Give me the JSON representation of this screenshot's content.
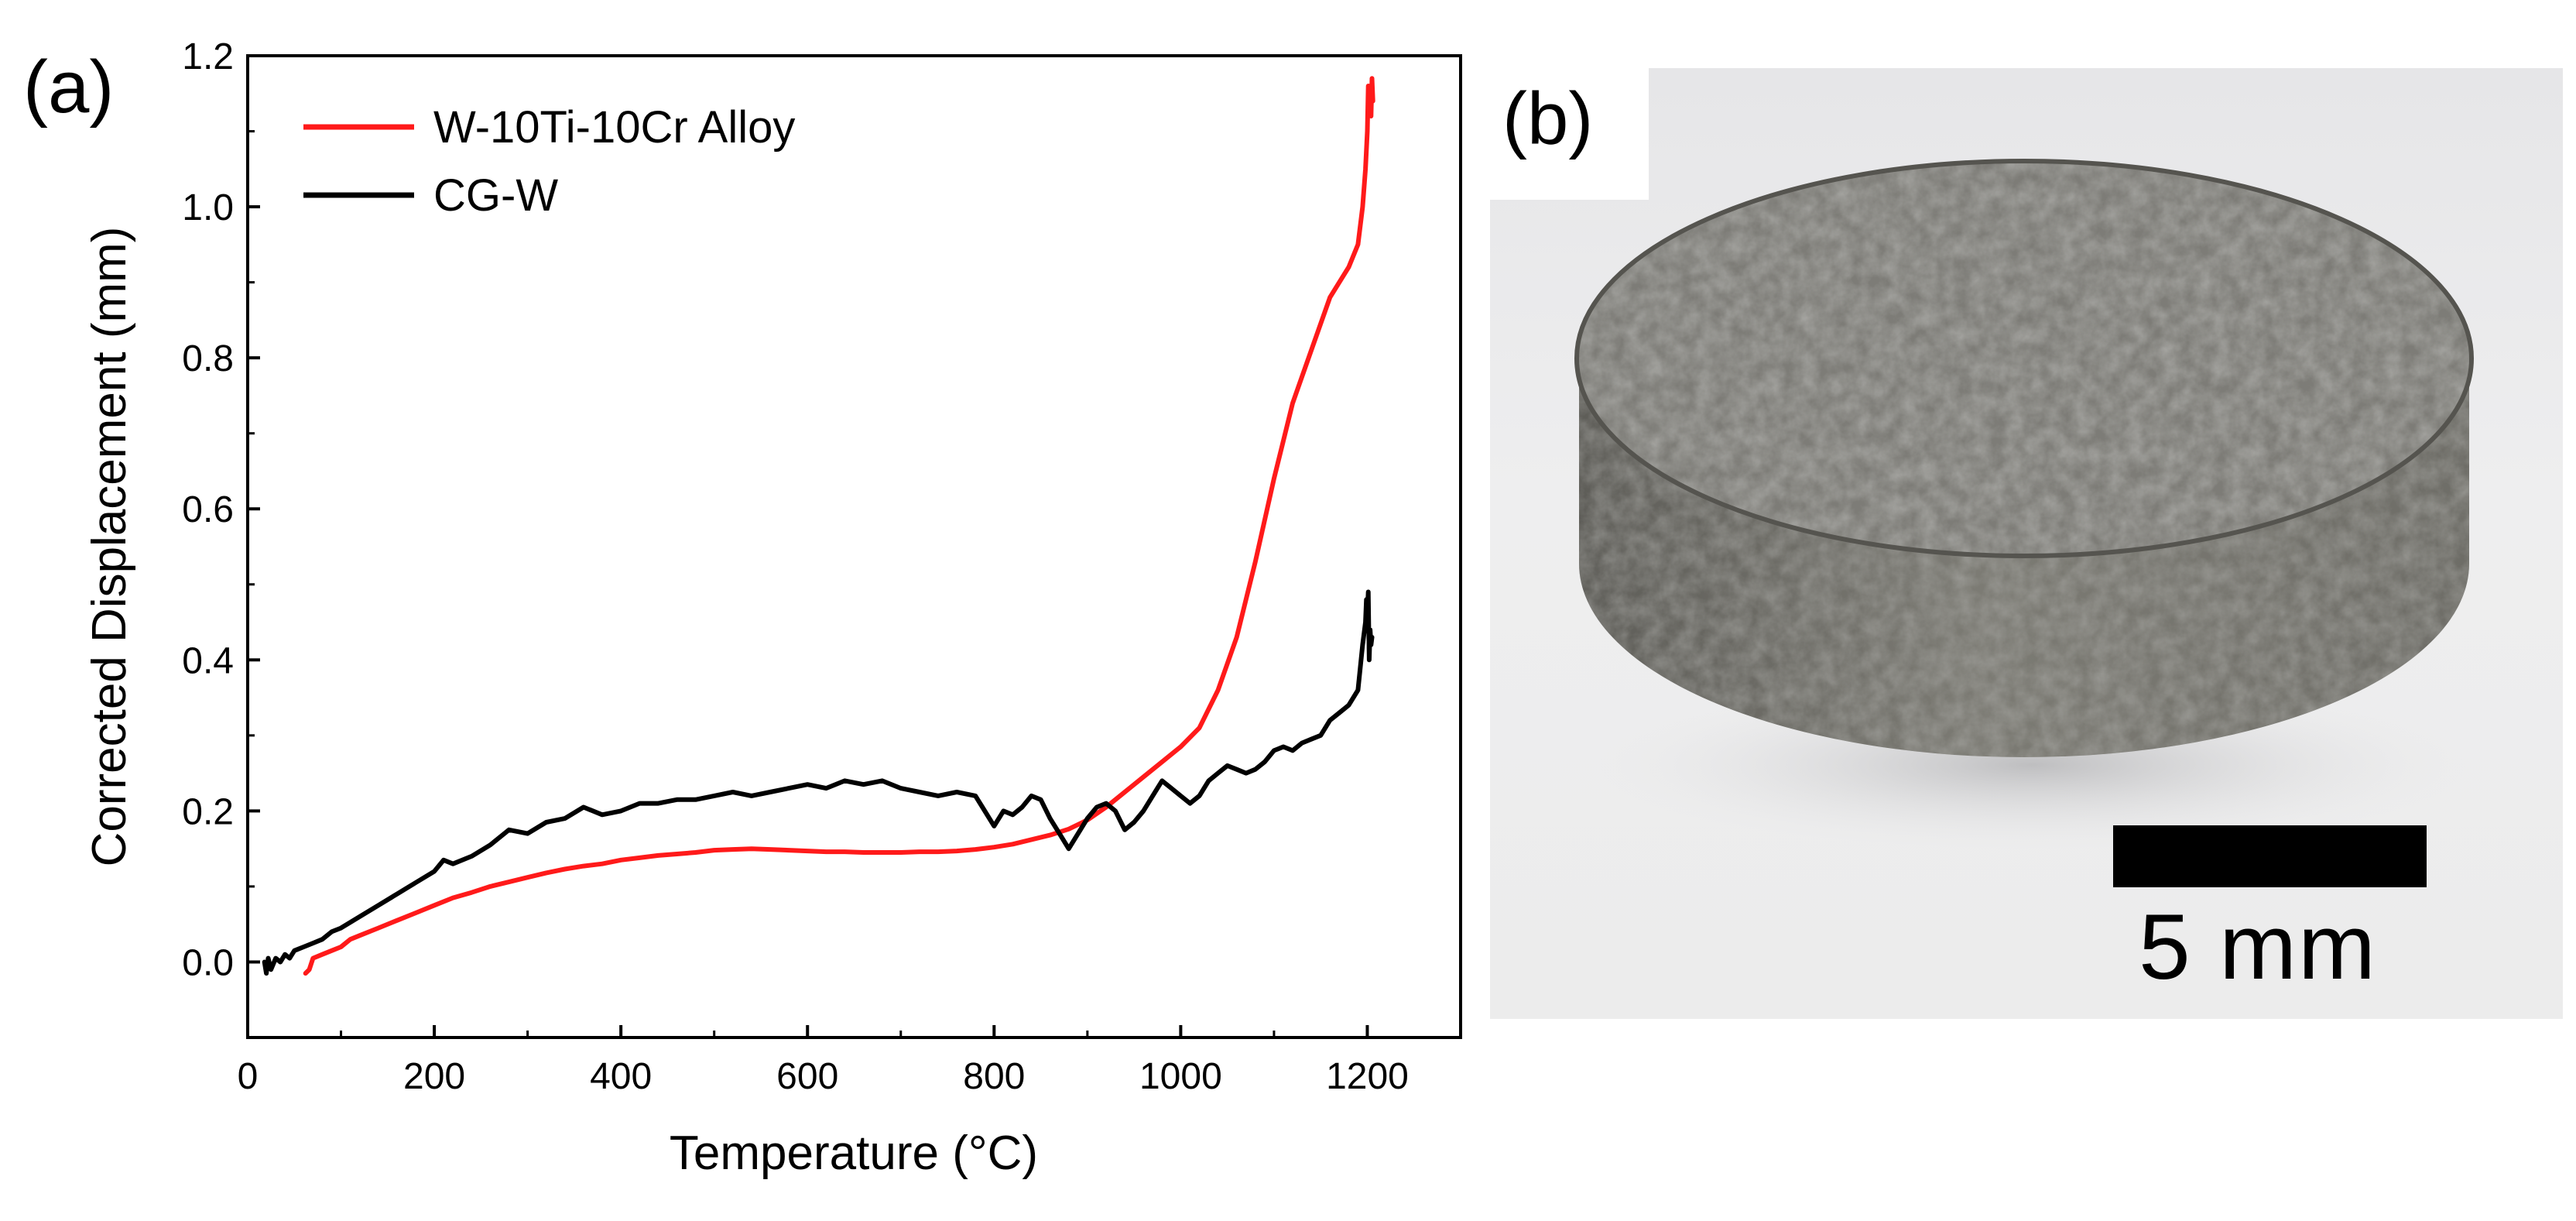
{
  "panel_a_label": "(a)",
  "panel_b_label": "(b)",
  "scale_bar_label": "5 mm",
  "colors": {
    "alloy": "#ff1a1a",
    "cgw": "#000000"
  },
  "chart_data": {
    "type": "line",
    "title": "",
    "xlabel": "Temperature (°C)",
    "ylabel": "Corrected Displacement (mm)",
    "xlim": [
      0,
      1300
    ],
    "ylim": [
      -0.1,
      1.2
    ],
    "xticks": [
      0,
      200,
      400,
      600,
      800,
      1000,
      1200
    ],
    "yticks": [
      0.0,
      0.2,
      0.4,
      0.6,
      0.8,
      1.0,
      1.2
    ],
    "xtick_labels": [
      "0",
      "200",
      "400",
      "600",
      "800",
      "1000",
      "1200"
    ],
    "ytick_labels": [
      "0.0",
      "0.2",
      "0.4",
      "0.6",
      "0.8",
      "1.0",
      "1.2"
    ],
    "legend_position": "top-left",
    "series": [
      {
        "name": "W-10Ti-10Cr Alloy",
        "color": "#ff1a1a",
        "x": [
          62,
          66,
          70,
          80,
          90,
          100,
          110,
          120,
          140,
          160,
          180,
          200,
          220,
          240,
          260,
          280,
          300,
          320,
          340,
          360,
          380,
          400,
          420,
          440,
          460,
          480,
          500,
          520,
          540,
          560,
          580,
          600,
          620,
          640,
          660,
          680,
          700,
          720,
          740,
          760,
          780,
          800,
          820,
          840,
          860,
          880,
          900,
          920,
          940,
          960,
          980,
          1000,
          1020,
          1040,
          1060,
          1080,
          1100,
          1120,
          1140,
          1160,
          1170,
          1180,
          1190,
          1195,
          1198,
          1200,
          1201,
          1202,
          1203,
          1204,
          1205,
          1206
        ],
        "y": [
          -0.015,
          -0.01,
          0.005,
          0.01,
          0.015,
          0.02,
          0.03,
          0.035,
          0.045,
          0.055,
          0.065,
          0.075,
          0.085,
          0.092,
          0.1,
          0.106,
          0.112,
          0.118,
          0.123,
          0.127,
          0.13,
          0.135,
          0.138,
          0.141,
          0.143,
          0.145,
          0.148,
          0.149,
          0.15,
          0.149,
          0.148,
          0.147,
          0.146,
          0.146,
          0.145,
          0.145,
          0.145,
          0.146,
          0.146,
          0.147,
          0.149,
          0.152,
          0.156,
          0.162,
          0.168,
          0.176,
          0.188,
          0.205,
          0.225,
          0.245,
          0.265,
          0.285,
          0.31,
          0.36,
          0.43,
          0.53,
          0.64,
          0.74,
          0.81,
          0.88,
          0.9,
          0.92,
          0.95,
          1.0,
          1.05,
          1.1,
          1.16,
          1.13,
          1.16,
          1.12,
          1.17,
          1.14
        ]
      },
      {
        "name": "CG-W",
        "color": "#000000",
        "x": [
          18,
          20,
          22,
          25,
          30,
          35,
          40,
          45,
          50,
          60,
          70,
          80,
          90,
          100,
          120,
          140,
          160,
          180,
          200,
          210,
          220,
          240,
          260,
          280,
          300,
          320,
          340,
          360,
          380,
          400,
          420,
          440,
          460,
          480,
          500,
          520,
          540,
          560,
          580,
          600,
          620,
          640,
          660,
          680,
          700,
          720,
          740,
          760,
          780,
          800,
          810,
          820,
          830,
          840,
          850,
          860,
          870,
          880,
          890,
          900,
          910,
          920,
          930,
          940,
          950,
          960,
          970,
          980,
          990,
          1000,
          1010,
          1020,
          1030,
          1040,
          1050,
          1060,
          1070,
          1080,
          1090,
          1100,
          1110,
          1120,
          1130,
          1140,
          1150,
          1160,
          1170,
          1180,
          1185,
          1190,
          1195,
          1198,
          1199,
          1200,
          1201,
          1202,
          1203,
          1204,
          1205
        ],
        "y": [
          0.0,
          -0.015,
          0.005,
          -0.01,
          0.005,
          0.0,
          0.01,
          0.005,
          0.015,
          0.02,
          0.025,
          0.03,
          0.04,
          0.045,
          0.06,
          0.075,
          0.09,
          0.105,
          0.12,
          0.135,
          0.13,
          0.14,
          0.155,
          0.175,
          0.17,
          0.185,
          0.19,
          0.205,
          0.195,
          0.2,
          0.21,
          0.21,
          0.215,
          0.215,
          0.22,
          0.225,
          0.22,
          0.225,
          0.23,
          0.235,
          0.23,
          0.24,
          0.235,
          0.24,
          0.23,
          0.225,
          0.22,
          0.225,
          0.22,
          0.18,
          0.2,
          0.195,
          0.205,
          0.22,
          0.215,
          0.19,
          0.17,
          0.15,
          0.17,
          0.19,
          0.205,
          0.21,
          0.2,
          0.175,
          0.185,
          0.2,
          0.22,
          0.24,
          0.23,
          0.22,
          0.21,
          0.22,
          0.24,
          0.25,
          0.26,
          0.255,
          0.25,
          0.255,
          0.265,
          0.28,
          0.285,
          0.28,
          0.29,
          0.295,
          0.3,
          0.32,
          0.33,
          0.34,
          0.35,
          0.36,
          0.42,
          0.45,
          0.48,
          0.46,
          0.49,
          0.4,
          0.44,
          0.42,
          0.43
        ]
      }
    ]
  }
}
